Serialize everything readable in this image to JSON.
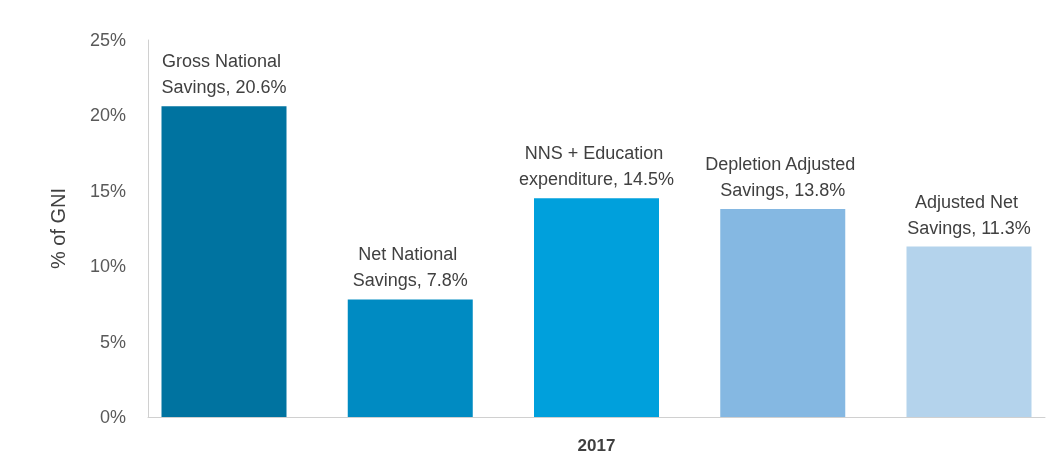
{
  "chart_data": {
    "type": "bar",
    "ylabel": "% of GNI",
    "categories": [
      "2017"
    ],
    "series": [
      {
        "color": "#0073a0",
        "values": [
          20.6
        ],
        "value_labels": [
          "Gross National Savings, 20.6%"
        ]
      },
      {
        "color": "#008bc2",
        "values": [
          7.8
        ],
        "value_labels": [
          "Net National Savings, 7.8%"
        ]
      },
      {
        "color": "#00a0dc",
        "values": [
          14.5
        ],
        "value_labels": [
          "NNS + Education expenditure, 14.5%"
        ]
      },
      {
        "color": "#85b8e2",
        "values": [
          13.8
        ],
        "value_labels": [
          "Depletion Adjusted Savings, 13.8%"
        ]
      },
      {
        "color": "#b4d3ec",
        "values": [
          11.3
        ],
        "value_labels": [
          "Adjusted Net Savings, 11.3%"
        ]
      }
    ],
    "ylim": [
      0,
      25
    ],
    "yticks": [
      {
        "value": 0,
        "label": "0%"
      },
      {
        "value": 5,
        "label": "5%"
      },
      {
        "value": 10,
        "label": "10%"
      },
      {
        "value": 15,
        "label": "15%"
      },
      {
        "value": 20,
        "label": "20%"
      },
      {
        "value": 25,
        "label": "25%"
      }
    ],
    "grid": false
  }
}
